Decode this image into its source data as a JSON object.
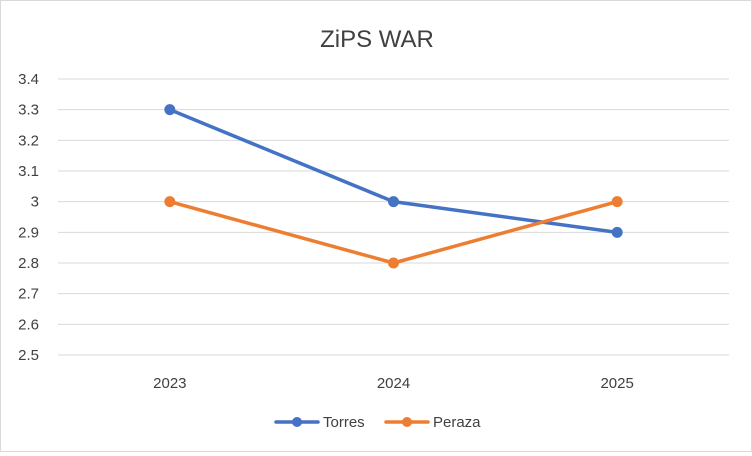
{
  "chart_data": {
    "type": "line",
    "title": "ZiPS WAR",
    "xlabel": "",
    "ylabel": "",
    "categories": [
      "2023",
      "2024",
      "2025"
    ],
    "ylim": [
      2.5,
      3.4
    ],
    "yticks": [
      2.5,
      2.6,
      2.7,
      2.8,
      2.9,
      3,
      3.1,
      3.2,
      3.3,
      3.4
    ],
    "ytick_labels": [
      "2.5",
      "2.6",
      "2.7",
      "2.8",
      "2.9",
      "3",
      "3.1",
      "3.2",
      "3.3",
      "3.4"
    ],
    "grid": true,
    "legend_position": "bottom",
    "series": [
      {
        "name": "Torres",
        "values": [
          3.3,
          3.0,
          2.9
        ],
        "color": "#4472c4"
      },
      {
        "name": "Peraza",
        "values": [
          3.0,
          2.8,
          3.0
        ],
        "color": "#ed7d31"
      }
    ]
  }
}
